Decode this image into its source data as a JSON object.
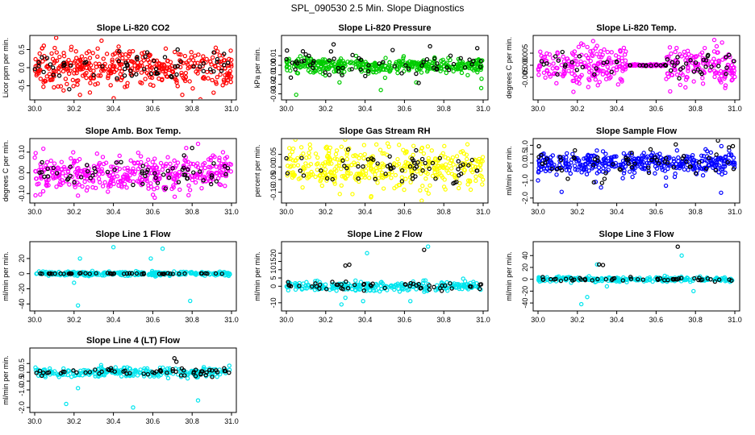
{
  "page_title": "SPL_090530  2.5 Min. Slope Diagnostics",
  "chart_data": [
    {
      "type": "scatter",
      "id": "co2",
      "title": "Slope Li-820 CO2",
      "ylabel": "Licor ppm per min.",
      "xlim": [
        30.0,
        31.0
      ],
      "ylim": [
        -0.8,
        0.8
      ],
      "xticks": [
        30.0,
        30.2,
        30.4,
        30.6,
        30.8,
        31.0
      ],
      "xtick_labels": [
        "30.0",
        "30.2",
        "30.4",
        "30.6",
        "30.8",
        "31.0"
      ],
      "yticks": [
        -0.5,
        0.0,
        0.5
      ],
      "ytick_labels": [
        "-0.5",
        "0.0",
        "0.5"
      ],
      "colors": [
        "#ff0000",
        "#000000"
      ],
      "series": [
        {
          "name": "all",
          "color": "#ff0000",
          "n": 400,
          "spread": 0.25,
          "points": [
            [
              30.23,
              -0.75
            ],
            [
              30.75,
              -0.75
            ],
            [
              30.92,
              0.55
            ],
            [
              30.21,
              0.45
            ]
          ]
        },
        {
          "name": "black",
          "color": "#000000",
          "n": 60,
          "spread": 0.18,
          "points": [
            [
              30.43,
              0.45
            ],
            [
              30.91,
              0.42
            ]
          ]
        }
      ]
    },
    {
      "type": "scatter",
      "id": "pressure",
      "title": "Slope Li-820 Pressure",
      "ylabel": "kPa per min.",
      "xlim": [
        30.0,
        31.0
      ],
      "ylim": [
        -0.033,
        0.028
      ],
      "xticks": [
        30.0,
        30.2,
        30.4,
        30.6,
        30.8,
        31.0
      ],
      "xtick_labels": [
        "30.0",
        "30.2",
        "30.4",
        "30.6",
        "30.8",
        "31.0"
      ],
      "yticks": [
        -0.03,
        -0.02,
        -0.01,
        0.0,
        0.01
      ],
      "ytick_labels": [
        "-0.03",
        "-0.02",
        "-0.01",
        "0.00",
        "0.01"
      ],
      "colors": [
        "#00cc00",
        "#000000"
      ],
      "series": [
        {
          "name": "all",
          "color": "#00cc00",
          "n": 400,
          "spread": 0.004,
          "points": [
            [
              30.05,
              -0.031
            ],
            [
              30.48,
              -0.026
            ],
            [
              30.99,
              -0.024
            ],
            [
              30.66,
              -0.018
            ],
            [
              30.27,
              -0.018
            ]
          ]
        },
        {
          "name": "black",
          "color": "#000000",
          "n": 60,
          "spread": 0.007,
          "points": [
            [
              30.24,
              0.022
            ],
            [
              30.73,
              0.02
            ],
            [
              30.97,
              0.018
            ],
            [
              30.54,
              0.016
            ]
          ]
        }
      ]
    },
    {
      "type": "scatter",
      "id": "temp",
      "title": "Slope Li-820 Temp.",
      "ylabel": "degrees C per min.",
      "xlim": [
        30.0,
        31.0
      ],
      "ylim": [
        -0.013,
        0.011
      ],
      "xticks": [
        30.0,
        30.2,
        30.4,
        30.6,
        30.8,
        31.0
      ],
      "xtick_labels": [
        "30.0",
        "30.2",
        "30.4",
        "30.6",
        "30.8",
        "31.0"
      ],
      "yticks": [
        -0.005,
        0.0,
        0.005
      ],
      "ytick_labels": [
        "-0.005",
        "0.000",
        "0.005"
      ],
      "colors": [
        "#ff00ff",
        "#000000"
      ],
      "series": [
        {
          "name": "all",
          "color": "#ff00ff",
          "n": 400,
          "spread": 0.004,
          "quiet": [
            30.45,
            30.65
          ],
          "points": [
            [
              30.28,
              0.01
            ],
            [
              30.22,
              0.009
            ],
            [
              30.18,
              -0.011
            ],
            [
              30.3,
              0.008
            ]
          ]
        },
        {
          "name": "black",
          "color": "#000000",
          "n": 60,
          "spread": 0.003,
          "quiet": [
            30.45,
            30.65
          ],
          "points": []
        }
      ]
    },
    {
      "type": "scatter",
      "id": "ambbox",
      "title": "Slope Amb. Box Temp.",
      "ylabel": "degrees C per min.",
      "xlim": [
        30.0,
        31.0
      ],
      "ylim": [
        -0.13,
        0.15
      ],
      "xticks": [
        30.0,
        30.2,
        30.4,
        30.6,
        30.8,
        31.0
      ],
      "xtick_labels": [
        "30.0",
        "30.2",
        "30.4",
        "30.6",
        "30.8",
        "31.0"
      ],
      "yticks": [
        -0.1,
        0.0,
        0.1
      ],
      "ytick_labels": [
        "-0.10",
        "0.00",
        "0.10"
      ],
      "colors": [
        "#ff00ff",
        "#000000"
      ],
      "series": [
        {
          "name": "all",
          "color": "#ff00ff",
          "n": 400,
          "spread": 0.045,
          "points": [
            [
              30.83,
              0.14
            ],
            [
              30.77,
              0.12
            ],
            [
              30.61,
              -0.12
            ],
            [
              30.22,
              -0.11
            ]
          ]
        },
        {
          "name": "black",
          "color": "#000000",
          "n": 60,
          "spread": 0.03,
          "points": [
            [
              30.8,
              0.12
            ]
          ]
        }
      ]
    },
    {
      "type": "scatter",
      "id": "rh",
      "title": "Slope Gas Stream RH",
      "ylabel": "percent per min.",
      "xlim": [
        30.0,
        31.0
      ],
      "ylim": [
        -0.13,
        0.1
      ],
      "xticks": [
        30.0,
        30.2,
        30.4,
        30.6,
        30.8,
        31.0
      ],
      "xtick_labels": [
        "30.0",
        "30.2",
        "30.4",
        "30.6",
        "30.8",
        "31.0"
      ],
      "yticks": [
        -0.1,
        -0.05,
        0.0,
        0.05
      ],
      "ytick_labels": [
        "-0.10",
        "-0.05",
        "0.00",
        "0.05"
      ],
      "colors": [
        "#ffff00",
        "#000000"
      ],
      "series": [
        {
          "name": "all",
          "color": "#ffff00",
          "n": 400,
          "spread": 0.04,
          "points": [
            [
              30.43,
              -0.12
            ],
            [
              30.92,
              0.09
            ],
            [
              30.28,
              0.08
            ]
          ]
        },
        {
          "name": "black",
          "color": "#000000",
          "n": 60,
          "spread": 0.03,
          "points": []
        }
      ]
    },
    {
      "type": "scatter",
      "id": "sample",
      "title": "Slope Sample Flow",
      "ylabel": "ml/min per min.",
      "xlim": [
        30.0,
        31.0
      ],
      "ylim": [
        -2.1,
        1.2
      ],
      "xticks": [
        30.0,
        30.2,
        30.4,
        30.6,
        30.8,
        31.0
      ],
      "xtick_labels": [
        "30.0",
        "30.2",
        "30.4",
        "30.6",
        "30.8",
        "31.0"
      ],
      "yticks": [
        -2.0,
        -1.0,
        0.0,
        0.5,
        1.0
      ],
      "ytick_labels": [
        "-2.0",
        "-1.0",
        "0.0",
        "0.5",
        "1.0"
      ],
      "colors": [
        "#0000ff",
        "#000000"
      ],
      "series": [
        {
          "name": "all",
          "color": "#0000ff",
          "n": 400,
          "spread": 0.3,
          "points": [
            [
              30.93,
              -1.7
            ],
            [
              30.12,
              -1.65
            ],
            [
              30.32,
              -1.4
            ],
            [
              30.65,
              -1.3
            ],
            [
              30.0,
              -1.0
            ],
            [
              30.48,
              -0.8
            ]
          ]
        },
        {
          "name": "black",
          "color": "#000000",
          "n": 60,
          "spread": 0.45,
          "points": [
            [
              30.7,
              1.05
            ],
            [
              30.99,
              0.95
            ]
          ]
        }
      ]
    },
    {
      "type": "scatter",
      "id": "line1",
      "title": "Slope Line 1 Flow",
      "ylabel": "ml/min per min.",
      "xlim": [
        30.0,
        31.0
      ],
      "ylim": [
        -45,
        38
      ],
      "xticks": [
        30.0,
        30.2,
        30.4,
        30.6,
        30.8,
        31.0
      ],
      "xtick_labels": [
        "30.0",
        "30.2",
        "30.4",
        "30.6",
        "30.8",
        "31.0"
      ],
      "yticks": [
        -40,
        -20,
        0,
        20
      ],
      "ytick_labels": [
        "-40",
        "-20",
        "0",
        "20"
      ],
      "colors": [
        "#00e5ee",
        "#000000"
      ],
      "series": [
        {
          "name": "all",
          "color": "#00e5ee",
          "n": 260,
          "spread": 1.5,
          "points": [
            [
              30.4,
              35
            ],
            [
              30.65,
              33
            ],
            [
              30.23,
              20
            ],
            [
              30.59,
              20
            ],
            [
              30.2,
              -12
            ],
            [
              30.22,
              -42
            ],
            [
              30.79,
              -36
            ]
          ]
        },
        {
          "name": "black",
          "color": "#000000",
          "n": 50,
          "spread": 0.3,
          "points": []
        }
      ]
    },
    {
      "type": "scatter",
      "id": "line2",
      "title": "Slope Line 2 Flow",
      "ylabel": "ml/min per min.",
      "xlim": [
        30.0,
        31.0
      ],
      "ylim": [
        -13,
        25
      ],
      "xticks": [
        30.0,
        30.2,
        30.4,
        30.6,
        30.8,
        31.0
      ],
      "xtick_labels": [
        "30.0",
        "30.2",
        "30.4",
        "30.6",
        "30.8",
        "31.0"
      ],
      "yticks": [
        -10,
        0,
        5,
        10,
        15,
        20
      ],
      "ytick_labels": [
        "-10",
        "0",
        "5",
        "10",
        "15",
        "20"
      ],
      "colors": [
        "#00e5ee",
        "#000000"
      ],
      "series": [
        {
          "name": "all",
          "color": "#00e5ee",
          "n": 260,
          "spread": 1.5,
          "points": [
            [
              30.72,
              24
            ],
            [
              30.41,
              20
            ],
            [
              30.3,
              -7
            ],
            [
              30.39,
              -9
            ],
            [
              30.28,
              -11
            ],
            [
              30.63,
              -9
            ]
          ]
        },
        {
          "name": "black",
          "color": "#000000",
          "n": 50,
          "spread": 1.5,
          "points": [
            [
              30.3,
              12.5
            ],
            [
              30.32,
              13
            ],
            [
              30.7,
              22
            ]
          ]
        }
      ]
    },
    {
      "type": "scatter",
      "id": "line3",
      "title": "Slope Line 3 Flow",
      "ylabel": "ml/min per min.",
      "xlim": [
        30.0,
        31.0
      ],
      "ylim": [
        -48,
        58
      ],
      "xticks": [
        30.0,
        30.2,
        30.4,
        30.6,
        30.8,
        31.0
      ],
      "xtick_labels": [
        "30.0",
        "30.2",
        "30.4",
        "30.6",
        "30.8",
        "31.0"
      ],
      "yticks": [
        -40,
        -20,
        0,
        20,
        40
      ],
      "ytick_labels": [
        "-40",
        "-20",
        "0",
        "20",
        "40"
      ],
      "colors": [
        "#00e5ee",
        "#000000"
      ],
      "series": [
        {
          "name": "all",
          "color": "#00e5ee",
          "n": 260,
          "spread": 2.0,
          "points": [
            [
              30.22,
              -42
            ],
            [
              30.25,
              -30
            ],
            [
              30.73,
              40
            ],
            [
              30.79,
              -20
            ],
            [
              30.3,
              25
            ],
            [
              30.35,
              -12
            ]
          ]
        },
        {
          "name": "black",
          "color": "#000000",
          "n": 50,
          "spread": 1.5,
          "points": [
            [
              30.71,
              55
            ],
            [
              30.31,
              25
            ],
            [
              30.33,
              24
            ]
          ]
        }
      ]
    },
    {
      "type": "scatter",
      "id": "line4",
      "title": "Slope Line 4 (LT) Flow",
      "ylabel": "ml/min per min.",
      "xlim": [
        30.0,
        31.0
      ],
      "ylim": [
        -2.1,
        1.2
      ],
      "xticks": [
        30.0,
        30.2,
        30.4,
        30.6,
        30.8,
        31.0
      ],
      "xtick_labels": [
        "30.0",
        "30.2",
        "30.4",
        "30.6",
        "30.8",
        "31.0"
      ],
      "yticks": [
        -2.0,
        -1.0,
        -0.5,
        0.0,
        0.5
      ],
      "ytick_labels": [
        "-2.0",
        "-1.0",
        "-0.5",
        "0.0",
        "0.5"
      ],
      "colors": [
        "#00e5ee",
        "#000000"
      ],
      "series": [
        {
          "name": "all",
          "color": "#00e5ee",
          "n": 260,
          "spread": 0.14,
          "points": [
            [
              30.16,
              -1.8
            ],
            [
              30.5,
              -2.0
            ],
            [
              30.83,
              -1.6
            ],
            [
              30.22,
              -0.9
            ]
          ]
        },
        {
          "name": "black",
          "color": "#000000",
          "n": 60,
          "spread": 0.12,
          "points": [
            [
              30.71,
              0.8
            ],
            [
              30.72,
              0.6
            ]
          ]
        }
      ]
    }
  ]
}
